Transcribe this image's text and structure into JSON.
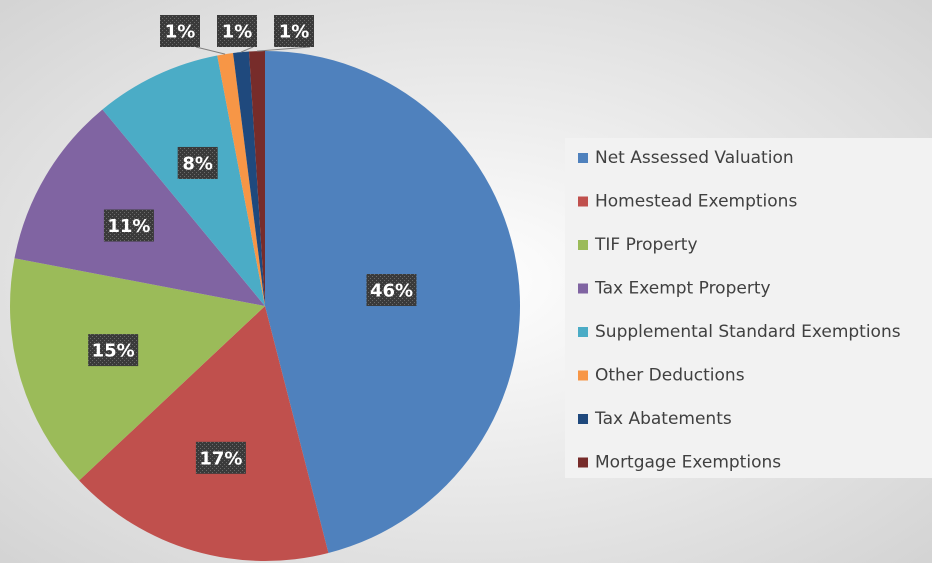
{
  "chart_data": {
    "type": "pie",
    "categories": [
      "Net Assessed Valuation",
      "Homestead Exemptions",
      "TIF Property",
      "Tax Exempt Property",
      "Supplemental Standard Exemptions",
      "Other Deductions",
      "Tax Abatements",
      "Mortgage Exemptions"
    ],
    "values": [
      46,
      17,
      15,
      11,
      8,
      1,
      1,
      1
    ],
    "value_labels": [
      "46%",
      "17%",
      "15%",
      "11%",
      "8%",
      "1%",
      "1%",
      "1%"
    ],
    "colors": [
      "#4f81bd",
      "#c0504d",
      "#9bbb59",
      "#8064a2",
      "#4bacc6",
      "#f79646",
      "#1f497d",
      "#772c2a"
    ],
    "legend": "right"
  }
}
